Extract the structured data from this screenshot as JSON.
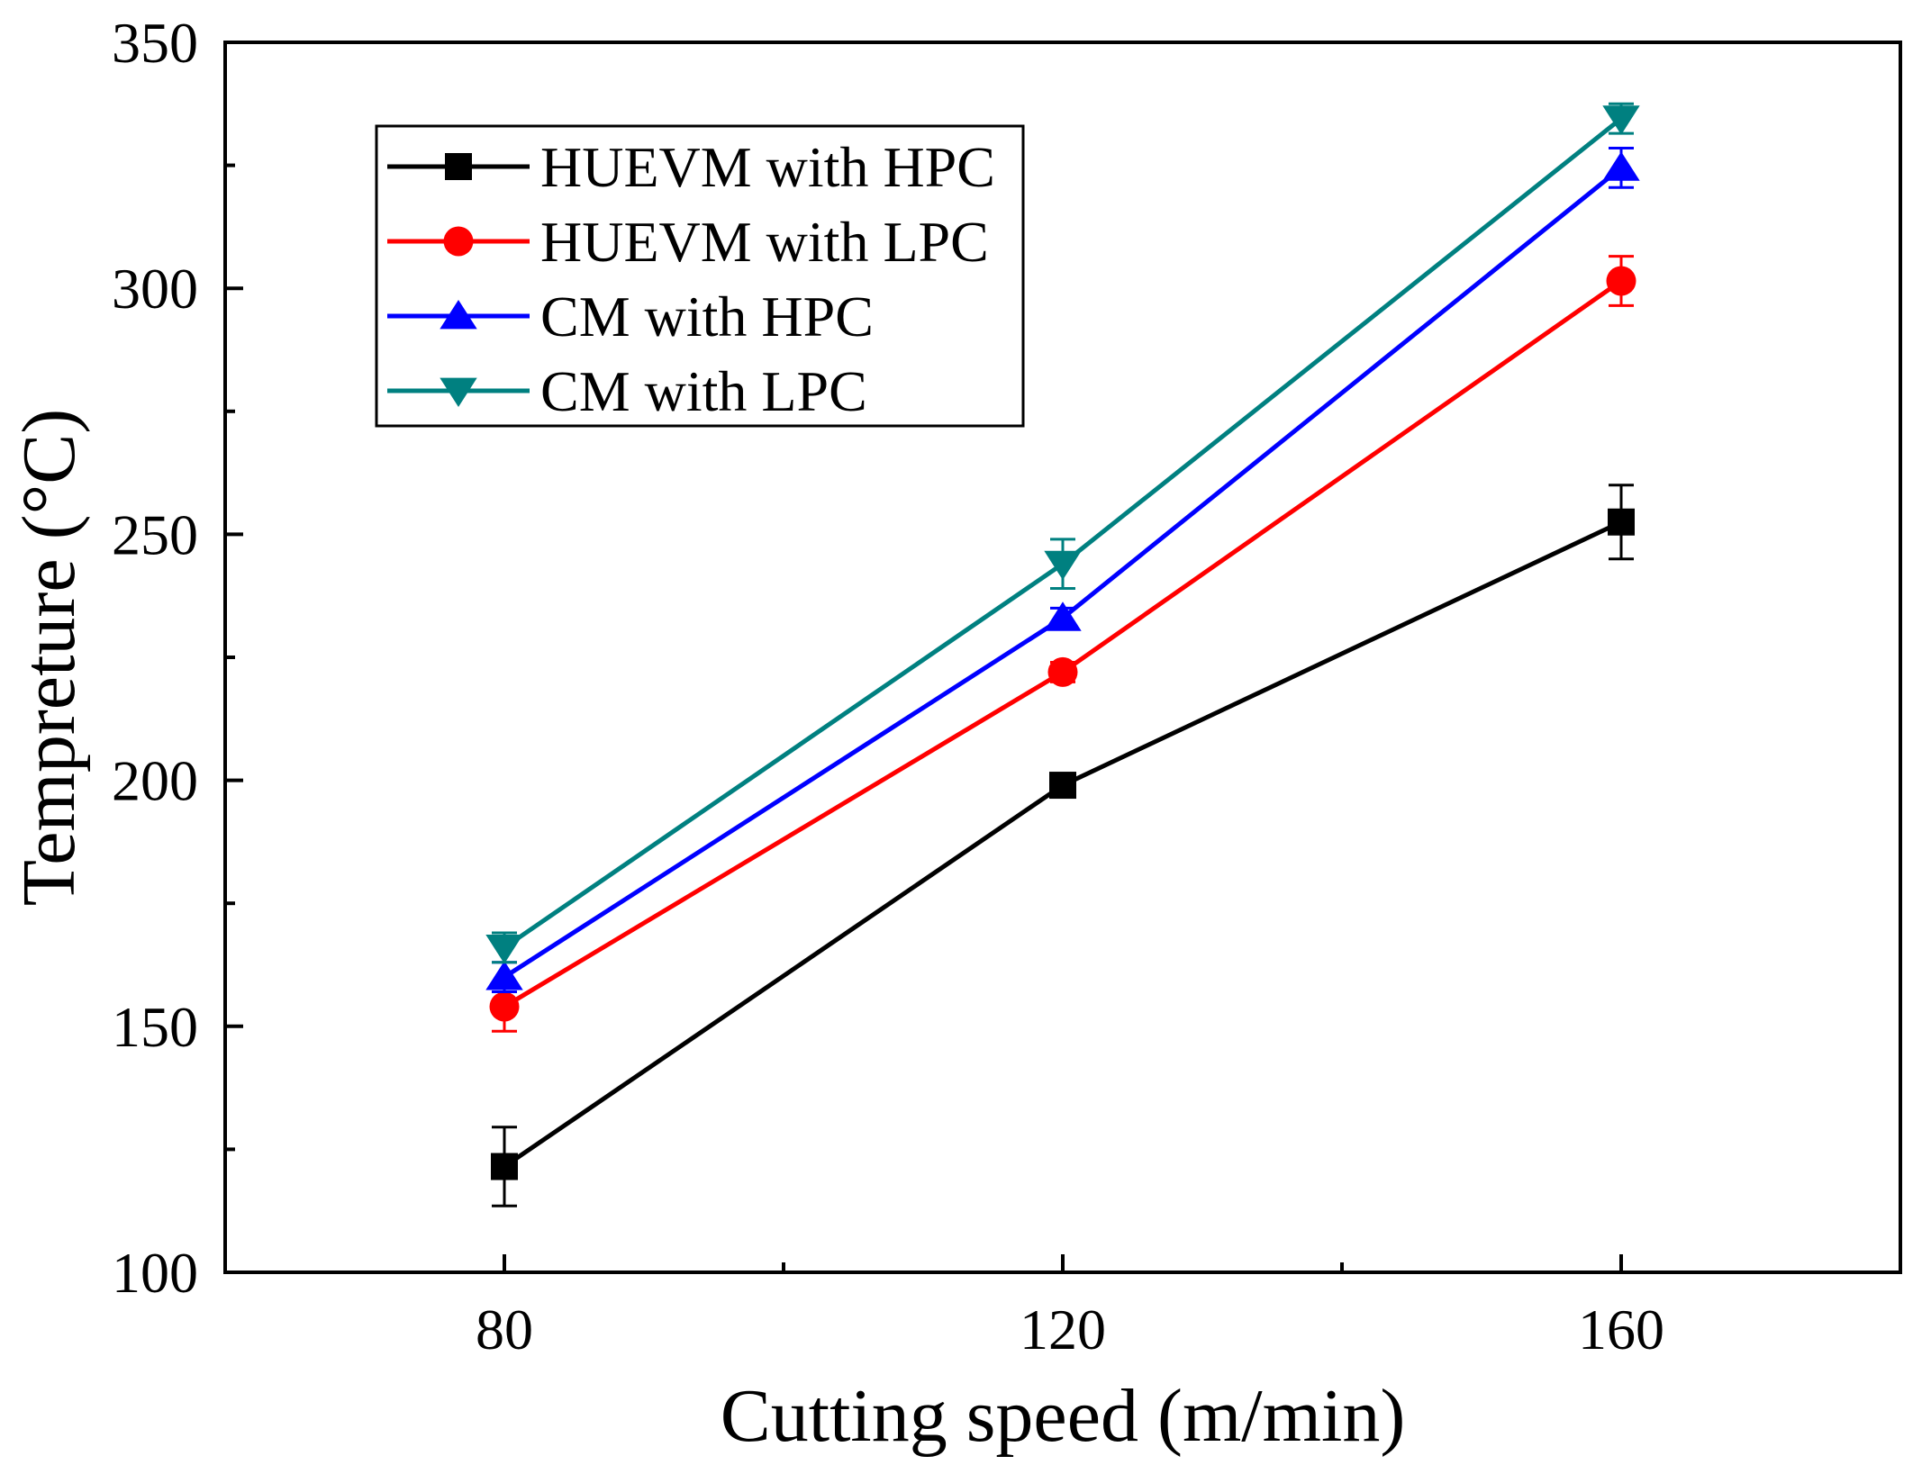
{
  "chart_data": {
    "type": "line",
    "xlabel": "Cutting speed (m/min)",
    "ylabel": "Tempreture (°C)",
    "xlim": [
      60,
      180
    ],
    "ylim": [
      100,
      350
    ],
    "x_ticks": [
      80,
      120,
      160
    ],
    "x_tick_labels": [
      "80",
      "120",
      "160"
    ],
    "y_ticks": [
      100,
      150,
      200,
      250,
      300,
      350
    ],
    "y_tick_labels": [
      "100",
      "150",
      "200",
      "250",
      "300",
      "350"
    ],
    "grid": false,
    "legend_position": "top-left",
    "x": [
      80,
      120,
      160
    ],
    "series": [
      {
        "name": "HUEVM with HPC",
        "color": "#000000",
        "marker": "square",
        "values": [
          121.5,
          199,
          252.5
        ],
        "errors": [
          8,
          2,
          7.5
        ]
      },
      {
        "name": "HUEVM with LPC",
        "color": "#ff0000",
        "marker": "circle",
        "values": [
          154,
          222,
          301.5
        ],
        "errors": [
          5,
          2,
          5
        ]
      },
      {
        "name": "CM with HPC",
        "color": "#0000ff",
        "marker": "triangle-up",
        "values": [
          160,
          233,
          324.5
        ],
        "errors": [
          3,
          2,
          4
        ]
      },
      {
        "name": "CM with LPC",
        "color": "#008080",
        "marker": "triangle-down",
        "values": [
          166,
          244,
          334.5
        ],
        "errors": [
          3,
          5,
          3
        ]
      }
    ]
  }
}
